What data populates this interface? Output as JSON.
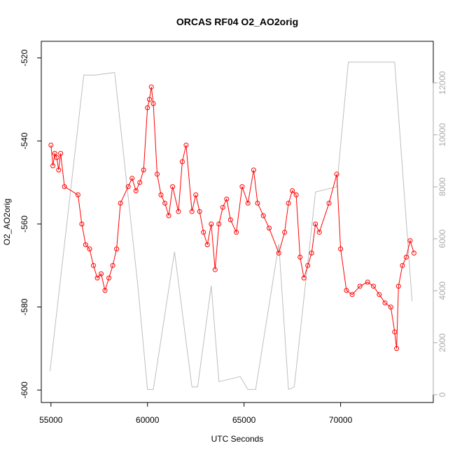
{
  "chart_data": {
    "type": "line",
    "title": "ORCAS RF04 O2_AO2orig",
    "xlabel": "UTC Seconds",
    "ylabel": "O2_AO2orig",
    "xlim": [
      54500,
      74800
    ],
    "ylim": [
      -603,
      -516
    ],
    "y2lim": [
      -300,
      13600
    ],
    "xticks": [
      55000,
      60000,
      65000,
      70000
    ],
    "xtick_labels": [
      "55000",
      "60000",
      "65000",
      "70000"
    ],
    "yticks": [
      -600,
      -580,
      -560,
      -540,
      -520
    ],
    "ytick_labels": [
      "-600",
      "-580",
      "-560",
      "-540",
      "-520"
    ],
    "y2ticks": [
      0,
      2000,
      4000,
      6000,
      8000,
      10000,
      12000
    ],
    "y2tick_labels": [
      "0",
      "2000",
      "4000",
      "6000",
      "8000",
      "10000",
      "12000"
    ],
    "grid": false,
    "colors": {
      "o2": "#ff0000",
      "altitude": "#bebebe",
      "axis": "#000000",
      "axis2": "#aaaaaa"
    },
    "series": [
      {
        "axis": "left",
        "x": [
          55000,
          55100,
          55200,
          55300,
          55400,
          55500,
          55700,
          56400,
          56600,
          56800,
          57000,
          57200,
          57400,
          57600,
          57800,
          58000,
          58200,
          58400,
          58600,
          59000,
          59200,
          59400,
          59600,
          59800,
          60000,
          60100,
          60200,
          60300,
          60500,
          60700,
          60900,
          61100,
          61300,
          61600,
          61800,
          62000,
          62300,
          62500,
          62700,
          62900,
          63100,
          63300,
          63500,
          63700,
          63900,
          64100,
          64300,
          64600,
          64900,
          65200,
          65500,
          65700,
          66000,
          66300,
          66800,
          67100,
          67300,
          67500,
          67700,
          67900,
          68100,
          68300,
          68500,
          68700,
          68900,
          69400,
          69800,
          70000,
          70300,
          70600,
          71000,
          71400,
          71700,
          72000,
          72300,
          72600,
          72800,
          72900,
          73000,
          73200,
          73400,
          73600,
          73800
        ],
        "y": [
          -541,
          -546,
          -543,
          -544,
          -547,
          -543,
          -551,
          -553,
          -560,
          -565,
          -566,
          -570,
          -573,
          -572,
          -576,
          -573,
          -570,
          -566,
          -555,
          -551,
          -549,
          -552,
          -550,
          -547,
          -532,
          -530,
          -527,
          -531,
          -548,
          -553,
          -555,
          -558,
          -551,
          -557,
          -545,
          -541,
          -557,
          -553,
          -557,
          -562,
          -565,
          -560,
          -571,
          -560,
          -556,
          -554,
          -559,
          -562,
          -551,
          -555,
          -547,
          -555,
          -558,
          -561,
          -567,
          -562,
          -555,
          -552,
          -553,
          -568,
          -573,
          -570,
          -567,
          -560,
          -562,
          -555,
          -548,
          -566,
          -576,
          -577,
          -575,
          -574,
          -575,
          -577,
          -579,
          -580,
          -586,
          -590,
          -575,
          -570,
          -568,
          -564,
          -567
        ]
      },
      {
        "axis": "right",
        "x": [
          54950,
          56700,
          57300,
          58300,
          59500,
          60000,
          60300,
          61400,
          62300,
          62600,
          63300,
          63700,
          64800,
          65200,
          65600,
          66800,
          67300,
          67600,
          68700,
          69800,
          70400,
          72800,
          73700
        ],
        "y": [
          900,
          12300,
          12300,
          12400,
          4200,
          200,
          200,
          5500,
          300,
          300,
          4200,
          500,
          700,
          200,
          200,
          5800,
          200,
          300,
          7800,
          8000,
          12800,
          12800,
          3600
        ]
      }
    ]
  }
}
